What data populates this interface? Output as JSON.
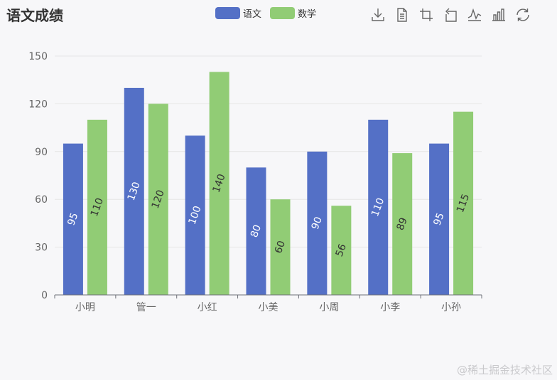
{
  "chart_data": {
    "type": "bar",
    "title": "语文成绩",
    "categories": [
      "小明",
      "管一",
      "小红",
      "小美",
      "小周",
      "小李",
      "小孙"
    ],
    "series": [
      {
        "name": "语文",
        "values": [
          95,
          130,
          100,
          80,
          90,
          110,
          95
        ],
        "color": "#5470c6",
        "label_color": "#ffffff"
      },
      {
        "name": "数学",
        "values": [
          110,
          120,
          140,
          60,
          56,
          89,
          115
        ],
        "color": "#91cc75",
        "label_color": "#333333"
      }
    ],
    "ylim": [
      0,
      150
    ],
    "yticks": [
      0,
      30,
      60,
      90,
      120,
      150
    ],
    "xlabel": "",
    "ylabel": "",
    "legend_position": "top-center",
    "grid": true,
    "label_rotation_deg": -70
  },
  "toolbox": {
    "icons": [
      "download-icon",
      "data-view-icon",
      "zoom-icon",
      "zoom-reset-icon",
      "line-chart-icon",
      "bar-chart-icon",
      "restore-icon"
    ]
  },
  "watermark": "@稀土掘金技术社区"
}
